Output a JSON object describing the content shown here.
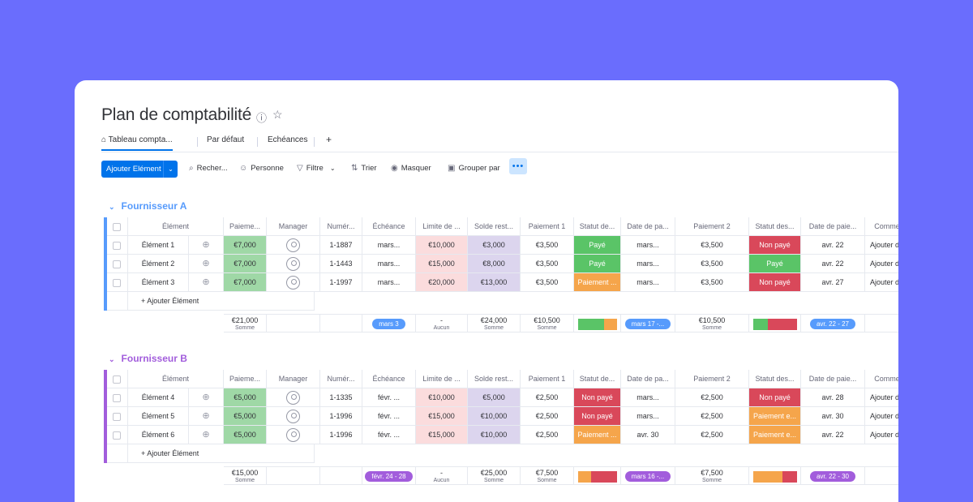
{
  "board": {
    "title": "Plan de comptabilité",
    "tabs": [
      "Tableau compta...",
      "Par défaut",
      "Echéances",
      "+"
    ]
  },
  "toolbar": {
    "add_label": "Ajouter Elément",
    "search": "Recher...",
    "person": "Personne",
    "filter": "Filtre",
    "sort": "Trier",
    "hide": "Masquer",
    "group": "Grouper par",
    "more": "•••"
  },
  "columns": [
    "Élément",
    "Paieme...",
    "Manager",
    "Numér...",
    "Échéance",
    "Limite de ...",
    "Solde rest...",
    "Paiement 1",
    "Statut de...",
    "Date de pa...",
    "Paiement 2",
    "Statut des...",
    "Date de paie...",
    "Commen"
  ],
  "groups": [
    {
      "name": "Fournisseur A",
      "color": "#579bfc",
      "rows": [
        {
          "item": "Élément 1",
          "pay": "€7,000",
          "num": "1-1887",
          "due": "mars...",
          "limit": "€10,000",
          "bal": "€3,000",
          "p1": "€3,500",
          "s1": "Payé",
          "d1": "mars...",
          "p2": "€3,500",
          "s2": "Non payé",
          "d2": "avr. 22",
          "comment": "Ajouter de"
        },
        {
          "item": "Élément 2",
          "pay": "€7,000",
          "num": "1-1443",
          "due": "mars...",
          "limit": "€15,000",
          "bal": "€8,000",
          "p1": "€3,500",
          "s1": "Payé",
          "d1": "mars...",
          "p2": "€3,500",
          "s2": "Payé",
          "d2": "avr. 22",
          "comment": "Ajouter de"
        },
        {
          "item": "Élément 3",
          "pay": "€7,000",
          "num": "1-1997",
          "due": "mars...",
          "limit": "€20,000",
          "bal": "€13,000",
          "p1": "€3,500",
          "s1": "Paiement ...",
          "d1": "mars...",
          "p2": "€3,500",
          "s2": "Non payé",
          "d2": "avr. 27",
          "comment": "Ajouter de"
        }
      ],
      "add_row": "+ Ajouter Élément",
      "summary": {
        "pay": "€21,000",
        "pay_sub": "Somme",
        "due": "mars 3",
        "limit": "-",
        "limit_sub": "Aucun",
        "bal": "€24,000",
        "bal_sub": "Somme",
        "p1": "€10,500",
        "p1_sub": "Somme",
        "d1": "mars 17 -...",
        "p2": "€10,500",
        "p2_sub": "Somme",
        "d2": "avr. 22 - 27"
      }
    },
    {
      "name": "Fournisseur B",
      "color": "#a25ddc",
      "rows": [
        {
          "item": "Élément 4",
          "pay": "€5,000",
          "num": "1-1335",
          "due": "févr. ...",
          "limit": "€10,000",
          "bal": "€5,000",
          "p1": "€2,500",
          "s1": "Non payé",
          "d1": "mars...",
          "p2": "€2,500",
          "s2": "Non payé",
          "d2": "avr. 28",
          "comment": "Ajouter de"
        },
        {
          "item": "Élément 5",
          "pay": "€5,000",
          "num": "1-1996",
          "due": "févr. ...",
          "limit": "€15,000",
          "bal": "€10,000",
          "p1": "€2,500",
          "s1": "Non payé",
          "d1": "mars...",
          "p2": "€2,500",
          "s2": "Paiement e...",
          "d2": "avr. 30",
          "comment": "Ajouter de"
        },
        {
          "item": "Élément 6",
          "pay": "€5,000",
          "num": "1-1996",
          "due": "févr. ...",
          "limit": "€15,000",
          "bal": "€10,000",
          "p1": "€2,500",
          "s1": "Paiement ...",
          "d1": "avr. 30",
          "p2": "€2,500",
          "s2": "Paiement e...",
          "d2": "avr. 22",
          "comment": "Ajouter de"
        }
      ],
      "add_row": "+ Ajouter Élément",
      "summary": {
        "pay": "€15,000",
        "pay_sub": "Somme",
        "due": "févr. 24 - 28",
        "limit": "-",
        "limit_sub": "Aucun",
        "bal": "€25,000",
        "bal_sub": "Somme",
        "p1": "€7,500",
        "p1_sub": "Somme",
        "d1": "mars 16 -...",
        "p2": "€7,500",
        "p2_sub": "Somme",
        "d2": "avr. 22 - 30"
      }
    }
  ],
  "colors": {
    "background": "#6a6dfd",
    "accent": "#0073ea",
    "paid": "#5ac467",
    "unpaid": "#d9485a",
    "partial": "#f5a54b"
  }
}
